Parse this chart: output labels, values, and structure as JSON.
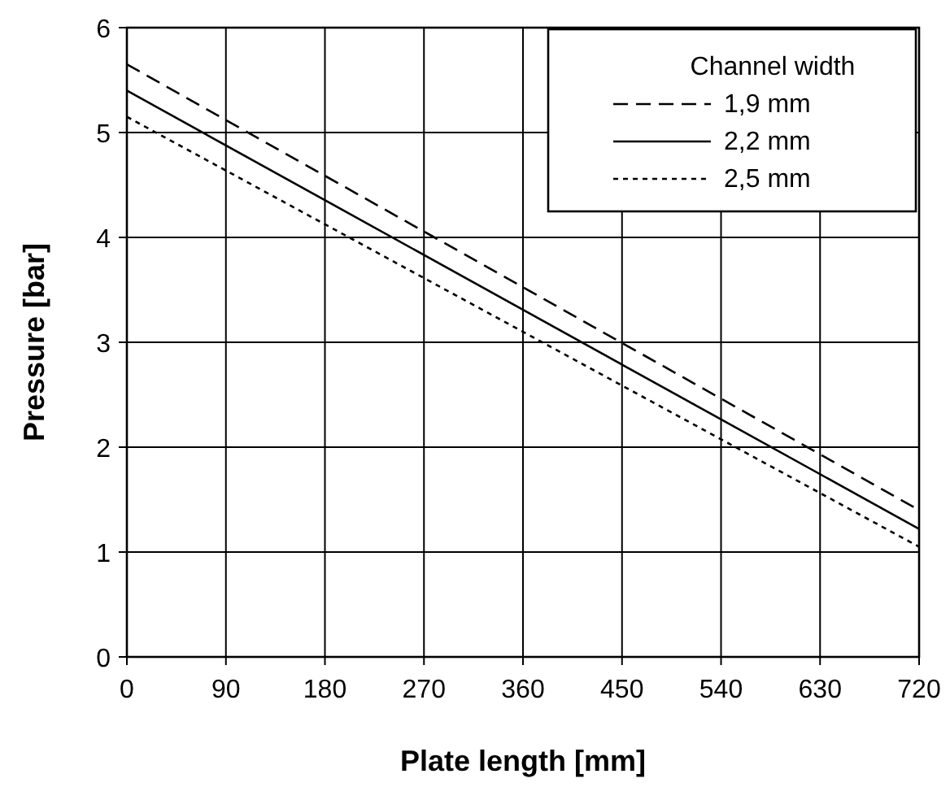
{
  "chart_data": {
    "type": "line",
    "xlabel": "Plate length [mm]",
    "ylabel": "Pressure [bar]",
    "legend_title": "Channel width",
    "x": [
      0,
      720
    ],
    "xlim": [
      0,
      720
    ],
    "xticks": [
      0,
      90,
      180,
      270,
      360,
      450,
      540,
      630,
      720
    ],
    "ylim": [
      0,
      6
    ],
    "yticks": [
      0,
      1,
      2,
      3,
      4,
      5,
      6
    ],
    "grid": true,
    "legend": "top right",
    "marker": "none",
    "series": [
      {
        "name": "1,9 mm",
        "color": "#000000",
        "line_style": "dashed",
        "values": [
          5.65,
          1.4
        ]
      },
      {
        "name": "2,2 mm",
        "color": "#000000",
        "line_style": "solid",
        "values": [
          5.4,
          1.22
        ]
      },
      {
        "name": "2,5 mm",
        "color": "#000000",
        "line_style": "dotted",
        "values": [
          5.15,
          1.05
        ]
      }
    ]
  }
}
